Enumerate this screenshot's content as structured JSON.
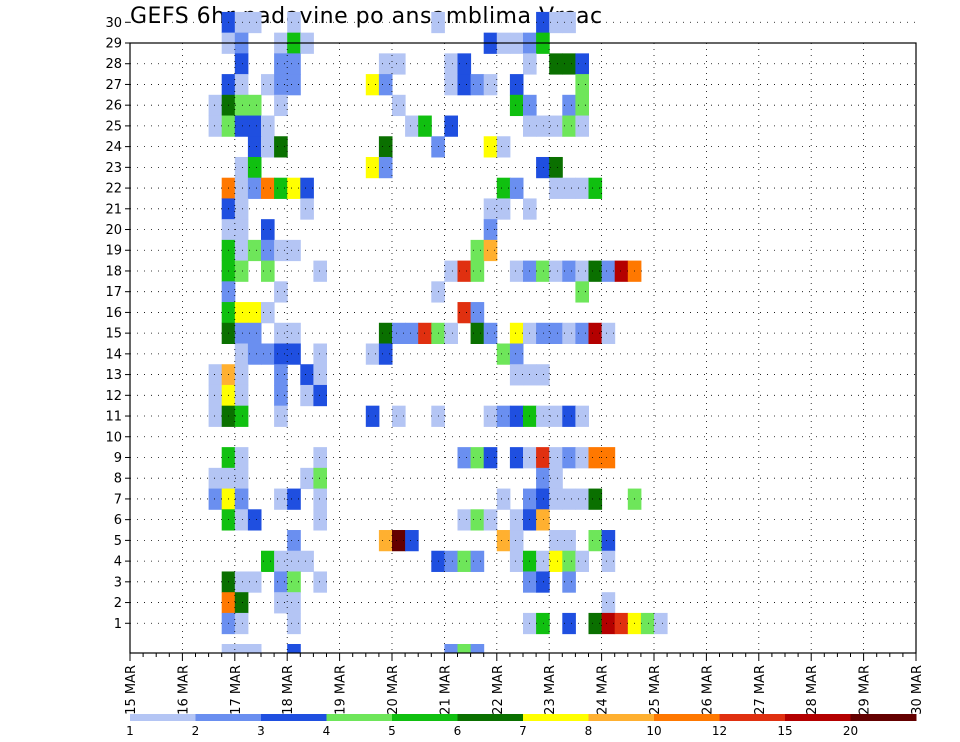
{
  "chart_data": {
    "type": "heatmap",
    "title": "GEFS 6hr padavine po ansamblima Vrsac",
    "x_tick_labels": [
      "15 MAR",
      "16 MAR",
      "17 MAR",
      "18 MAR",
      "19 MAR",
      "20 MAR",
      "21 MAR",
      "22 MAR",
      "23 MAR",
      "24 MAR",
      "25 MAR",
      "26 MAR",
      "27 MAR",
      "28 MAR",
      "29 MAR",
      "30 MAR"
    ],
    "y_tick_labels": [
      1,
      2,
      3,
      4,
      5,
      6,
      7,
      8,
      9,
      10,
      11,
      12,
      13,
      14,
      15,
      16,
      17,
      18,
      19,
      20,
      21,
      22,
      23,
      24,
      25,
      26,
      27,
      28,
      29,
      30
    ],
    "x_unit": "6-hour step from 15 MAR 00Z",
    "y_unit": "ensemble member",
    "grid": true,
    "legend": {
      "placement": "bottom",
      "labels": [
        "1",
        "2",
        "3",
        "4",
        "5",
        "6",
        "7",
        "8",
        "10",
        "12",
        "15",
        "20"
      ],
      "colors": [
        "#b4c5f4",
        "#6a8ff0",
        "#1f4fe0",
        "#6ee65a",
        "#10c010",
        "#0a7000",
        "#ffff00",
        "#ffb030",
        "#ff7800",
        "#e03010",
        "#b40000",
        "#640000"
      ]
    },
    "cells": [
      [
        7,
        30,
        2
      ],
      [
        8,
        30,
        0
      ],
      [
        9,
        30,
        0
      ],
      [
        12,
        30,
        0
      ],
      [
        23,
        30,
        0
      ],
      [
        31,
        30,
        2
      ],
      [
        32,
        30,
        0
      ],
      [
        33,
        30,
        0
      ],
      [
        7,
        29,
        0
      ],
      [
        8,
        29,
        1
      ],
      [
        11,
        29,
        0
      ],
      [
        12,
        29,
        4
      ],
      [
        13,
        29,
        0
      ],
      [
        27,
        29,
        2
      ],
      [
        28,
        29,
        0
      ],
      [
        29,
        29,
        0
      ],
      [
        30,
        29,
        1
      ],
      [
        31,
        29,
        4
      ],
      [
        8,
        28,
        2
      ],
      [
        11,
        28,
        1
      ],
      [
        12,
        28,
        1
      ],
      [
        19,
        28,
        0
      ],
      [
        20,
        28,
        0
      ],
      [
        24,
        28,
        0
      ],
      [
        25,
        28,
        2
      ],
      [
        30,
        28,
        0
      ],
      [
        32,
        28,
        5
      ],
      [
        33,
        28,
        5
      ],
      [
        34,
        28,
        2
      ],
      [
        7,
        27,
        2
      ],
      [
        8,
        27,
        0
      ],
      [
        10,
        27,
        0
      ],
      [
        11,
        27,
        1
      ],
      [
        12,
        27,
        1
      ],
      [
        18,
        27,
        6
      ],
      [
        19,
        27,
        1
      ],
      [
        24,
        27,
        0
      ],
      [
        25,
        27,
        2
      ],
      [
        26,
        27,
        1
      ],
      [
        27,
        27,
        0
      ],
      [
        29,
        27,
        2
      ],
      [
        34,
        27,
        3
      ],
      [
        6,
        26,
        0
      ],
      [
        7,
        26,
        5
      ],
      [
        8,
        26,
        3
      ],
      [
        9,
        26,
        3
      ],
      [
        11,
        26,
        0
      ],
      [
        20,
        26,
        0
      ],
      [
        29,
        26,
        4
      ],
      [
        30,
        26,
        1
      ],
      [
        33,
        26,
        1
      ],
      [
        34,
        26,
        3
      ],
      [
        6,
        25,
        0
      ],
      [
        7,
        25,
        3
      ],
      [
        8,
        25,
        2
      ],
      [
        9,
        25,
        2
      ],
      [
        10,
        25,
        0
      ],
      [
        21,
        25,
        0
      ],
      [
        22,
        25,
        4
      ],
      [
        24,
        25,
        2
      ],
      [
        30,
        25,
        0
      ],
      [
        31,
        25,
        0
      ],
      [
        32,
        25,
        0
      ],
      [
        33,
        25,
        3
      ],
      [
        34,
        25,
        0
      ],
      [
        9,
        24,
        2
      ],
      [
        10,
        24,
        0
      ],
      [
        11,
        24,
        5
      ],
      [
        19,
        24,
        5
      ],
      [
        23,
        24,
        1
      ],
      [
        27,
        24,
        6
      ],
      [
        28,
        24,
        0
      ],
      [
        8,
        23,
        0
      ],
      [
        9,
        23,
        4
      ],
      [
        18,
        23,
        6
      ],
      [
        19,
        23,
        1
      ],
      [
        31,
        23,
        2
      ],
      [
        32,
        23,
        5
      ],
      [
        7,
        22,
        8
      ],
      [
        8,
        22,
        0
      ],
      [
        9,
        22,
        1
      ],
      [
        10,
        22,
        8
      ],
      [
        11,
        22,
        4
      ],
      [
        12,
        22,
        6
      ],
      [
        13,
        22,
        2
      ],
      [
        28,
        22,
        4
      ],
      [
        29,
        22,
        1
      ],
      [
        32,
        22,
        0
      ],
      [
        33,
        22,
        0
      ],
      [
        34,
        22,
        0
      ],
      [
        35,
        22,
        4
      ],
      [
        7,
        21,
        2
      ],
      [
        8,
        21,
        0
      ],
      [
        13,
        21,
        0
      ],
      [
        27,
        21,
        0
      ],
      [
        28,
        21,
        0
      ],
      [
        30,
        21,
        0
      ],
      [
        7,
        20,
        0
      ],
      [
        8,
        20,
        0
      ],
      [
        10,
        20,
        2
      ],
      [
        27,
        20,
        1
      ],
      [
        7,
        19,
        4
      ],
      [
        8,
        19,
        0
      ],
      [
        9,
        19,
        3
      ],
      [
        10,
        19,
        1
      ],
      [
        11,
        19,
        0
      ],
      [
        12,
        19,
        0
      ],
      [
        26,
        19,
        3
      ],
      [
        27,
        19,
        7
      ],
      [
        7,
        18,
        4
      ],
      [
        8,
        18,
        3
      ],
      [
        10,
        18,
        3
      ],
      [
        14,
        18,
        0
      ],
      [
        24,
        18,
        0
      ],
      [
        25,
        18,
        9
      ],
      [
        26,
        18,
        3
      ],
      [
        29,
        18,
        0
      ],
      [
        30,
        18,
        1
      ],
      [
        31,
        18,
        3
      ],
      [
        32,
        18,
        0
      ],
      [
        33,
        18,
        1
      ],
      [
        34,
        18,
        0
      ],
      [
        35,
        18,
        5
      ],
      [
        36,
        18,
        1
      ],
      [
        37,
        18,
        10
      ],
      [
        38,
        18,
        8
      ],
      [
        7,
        17,
        1
      ],
      [
        11,
        17,
        0
      ],
      [
        23,
        17,
        0
      ],
      [
        34,
        17,
        3
      ],
      [
        7,
        16,
        4
      ],
      [
        8,
        16,
        6
      ],
      [
        9,
        16,
        6
      ],
      [
        10,
        16,
        0
      ],
      [
        25,
        16,
        9
      ],
      [
        26,
        16,
        1
      ],
      [
        7,
        15,
        5
      ],
      [
        8,
        15,
        1
      ],
      [
        9,
        15,
        1
      ],
      [
        11,
        15,
        0
      ],
      [
        12,
        15,
        0
      ],
      [
        19,
        15,
        5
      ],
      [
        20,
        15,
        1
      ],
      [
        21,
        15,
        1
      ],
      [
        22,
        15,
        9
      ],
      [
        23,
        15,
        3
      ],
      [
        24,
        15,
        0
      ],
      [
        26,
        15,
        5
      ],
      [
        27,
        15,
        1
      ],
      [
        29,
        15,
        6
      ],
      [
        30,
        15,
        0
      ],
      [
        31,
        15,
        1
      ],
      [
        32,
        15,
        1
      ],
      [
        33,
        15,
        0
      ],
      [
        34,
        15,
        1
      ],
      [
        35,
        15,
        10
      ],
      [
        36,
        15,
        0
      ],
      [
        8,
        14,
        0
      ],
      [
        9,
        14,
        1
      ],
      [
        10,
        14,
        1
      ],
      [
        11,
        14,
        2
      ],
      [
        12,
        14,
        2
      ],
      [
        14,
        14,
        0
      ],
      [
        18,
        14,
        0
      ],
      [
        19,
        14,
        2
      ],
      [
        28,
        14,
        3
      ],
      [
        29,
        14,
        1
      ],
      [
        6,
        13,
        0
      ],
      [
        7,
        13,
        7
      ],
      [
        8,
        13,
        0
      ],
      [
        11,
        13,
        1
      ],
      [
        13,
        13,
        2
      ],
      [
        14,
        13,
        0
      ],
      [
        29,
        13,
        0
      ],
      [
        30,
        13,
        0
      ],
      [
        31,
        13,
        0
      ],
      [
        6,
        12,
        0
      ],
      [
        7,
        12,
        6
      ],
      [
        8,
        12,
        0
      ],
      [
        11,
        12,
        1
      ],
      [
        13,
        12,
        0
      ],
      [
        14,
        12,
        2
      ],
      [
        6,
        11,
        0
      ],
      [
        7,
        11,
        5
      ],
      [
        8,
        11,
        4
      ],
      [
        11,
        11,
        0
      ],
      [
        18,
        11,
        2
      ],
      [
        20,
        11,
        0
      ],
      [
        23,
        11,
        0
      ],
      [
        27,
        11,
        0
      ],
      [
        28,
        11,
        1
      ],
      [
        29,
        11,
        2
      ],
      [
        30,
        11,
        4
      ],
      [
        31,
        11,
        0
      ],
      [
        32,
        11,
        0
      ],
      [
        33,
        11,
        2
      ],
      [
        34,
        11,
        0
      ],
      [
        7,
        9,
        4
      ],
      [
        8,
        9,
        0
      ],
      [
        14,
        9,
        0
      ],
      [
        25,
        9,
        1
      ],
      [
        26,
        9,
        3
      ],
      [
        27,
        9,
        2
      ],
      [
        29,
        9,
        2
      ],
      [
        30,
        9,
        0
      ],
      [
        31,
        9,
        9
      ],
      [
        32,
        9,
        0
      ],
      [
        33,
        9,
        1
      ],
      [
        34,
        9,
        0
      ],
      [
        35,
        9,
        8
      ],
      [
        36,
        9,
        8
      ],
      [
        6,
        8,
        0
      ],
      [
        7,
        8,
        0
      ],
      [
        8,
        8,
        0
      ],
      [
        13,
        8,
        0
      ],
      [
        14,
        8,
        3
      ],
      [
        31,
        8,
        1
      ],
      [
        32,
        8,
        0
      ],
      [
        6,
        7,
        1
      ],
      [
        7,
        7,
        6
      ],
      [
        8,
        7,
        1
      ],
      [
        11,
        7,
        0
      ],
      [
        12,
        7,
        2
      ],
      [
        14,
        7,
        0
      ],
      [
        28,
        7,
        0
      ],
      [
        30,
        7,
        1
      ],
      [
        31,
        7,
        2
      ],
      [
        32,
        7,
        0
      ],
      [
        33,
        7,
        0
      ],
      [
        34,
        7,
        0
      ],
      [
        35,
        7,
        5
      ],
      [
        38,
        7,
        3
      ],
      [
        7,
        6,
        4
      ],
      [
        8,
        6,
        0
      ],
      [
        9,
        6,
        2
      ],
      [
        14,
        6,
        0
      ],
      [
        25,
        6,
        0
      ],
      [
        26,
        6,
        3
      ],
      [
        27,
        6,
        0
      ],
      [
        29,
        6,
        0
      ],
      [
        30,
        6,
        2
      ],
      [
        31,
        6,
        7
      ],
      [
        12,
        5,
        1
      ],
      [
        19,
        5,
        7
      ],
      [
        20,
        5,
        11
      ],
      [
        21,
        5,
        2
      ],
      [
        28,
        5,
        7
      ],
      [
        29,
        5,
        0
      ],
      [
        32,
        5,
        0
      ],
      [
        33,
        5,
        0
      ],
      [
        35,
        5,
        3
      ],
      [
        36,
        5,
        2
      ],
      [
        10,
        4,
        4
      ],
      [
        11,
        4,
        0
      ],
      [
        12,
        4,
        0
      ],
      [
        13,
        4,
        0
      ],
      [
        23,
        4,
        2
      ],
      [
        24,
        4,
        1
      ],
      [
        25,
        4,
        3
      ],
      [
        26,
        4,
        1
      ],
      [
        29,
        4,
        0
      ],
      [
        30,
        4,
        4
      ],
      [
        31,
        4,
        0
      ],
      [
        32,
        4,
        6
      ],
      [
        33,
        4,
        3
      ],
      [
        34,
        4,
        0
      ],
      [
        36,
        4,
        0
      ],
      [
        7,
        3,
        5
      ],
      [
        8,
        3,
        0
      ],
      [
        9,
        3,
        0
      ],
      [
        11,
        3,
        1
      ],
      [
        12,
        3,
        3
      ],
      [
        14,
        3,
        0
      ],
      [
        30,
        3,
        1
      ],
      [
        31,
        3,
        2
      ],
      [
        33,
        3,
        1
      ],
      [
        7,
        2,
        8
      ],
      [
        8,
        2,
        5
      ],
      [
        11,
        2,
        0
      ],
      [
        12,
        2,
        0
      ],
      [
        36,
        2,
        0
      ],
      [
        7,
        1,
        1
      ],
      [
        8,
        1,
        0
      ],
      [
        12,
        1,
        0
      ],
      [
        30,
        1,
        0
      ],
      [
        31,
        1,
        4
      ],
      [
        33,
        1,
        2
      ],
      [
        35,
        1,
        5
      ],
      [
        36,
        1,
        10
      ],
      [
        37,
        1,
        9
      ],
      [
        38,
        1,
        6
      ],
      [
        39,
        1,
        3
      ],
      [
        40,
        1,
        0
      ],
      [
        7,
        0,
        0
      ],
      [
        8,
        0,
        0
      ],
      [
        9,
        0,
        0
      ],
      [
        12,
        0,
        2
      ],
      [
        24,
        0,
        1
      ],
      [
        25,
        0,
        3
      ],
      [
        26,
        0,
        1
      ]
    ]
  }
}
